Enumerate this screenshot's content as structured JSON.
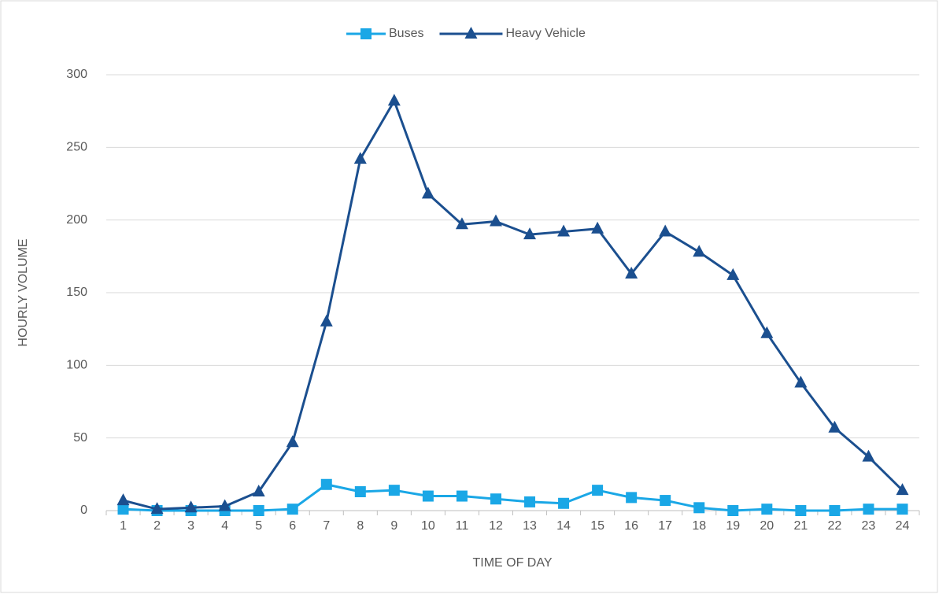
{
  "chart_data": {
    "type": "line",
    "xlabel": "TIME OF DAY",
    "ylabel": "HOURLY VOLUME",
    "categories": [
      "1",
      "2",
      "3",
      "4",
      "5",
      "6",
      "7",
      "8",
      "9",
      "10",
      "11",
      "12",
      "13",
      "14",
      "15",
      "16",
      "17",
      "18",
      "19",
      "20",
      "21",
      "22",
      "23",
      "24"
    ],
    "series": [
      {
        "name": "Buses",
        "color": "#1aa7e6",
        "marker": "square",
        "values": [
          1,
          0,
          0,
          0,
          0,
          1,
          18,
          13,
          14,
          10,
          10,
          8,
          6,
          5,
          14,
          9,
          7,
          2,
          0,
          1,
          0,
          0,
          1,
          1
        ]
      },
      {
        "name": "Heavy Vehicle",
        "color": "#1b4f8f",
        "marker": "triangle",
        "values": [
          7,
          1,
          2,
          3,
          13,
          47,
          130,
          242,
          282,
          218,
          197,
          199,
          190,
          192,
          194,
          163,
          192,
          178,
          162,
          122,
          88,
          57,
          37,
          14
        ]
      }
    ],
    "ylim": [
      0,
      300
    ],
    "yticks": [
      0,
      50,
      100,
      150,
      200,
      250,
      300
    ],
    "grid": true,
    "legend": "top"
  }
}
